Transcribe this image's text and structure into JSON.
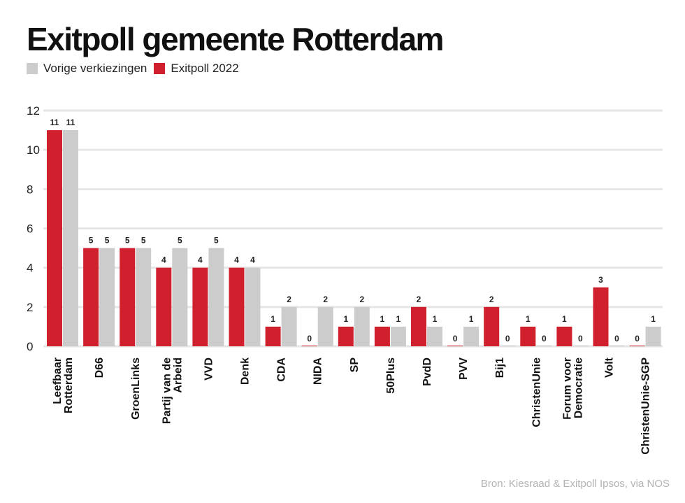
{
  "title": "Exitpoll gemeente Rotterdam",
  "source": "Bron: Kiesraad & Exitpoll Ipsos, via NOS",
  "colors": {
    "exitpoll": "#d0202e",
    "vorige": "#cccccc",
    "grid": "#e6e6e6"
  },
  "legend": [
    {
      "label": "Vorige verkiezingen",
      "color": "#cccccc"
    },
    {
      "label": "Exitpoll 2022",
      "color": "#d0202e"
    }
  ],
  "chart_data": {
    "type": "bar",
    "title": "Exitpoll gemeente Rotterdam",
    "xlabel": "",
    "ylabel": "",
    "ylim": [
      0,
      12
    ],
    "yticks": [
      0,
      2,
      4,
      6,
      8,
      10,
      12
    ],
    "grid": true,
    "legend_position": "top-left",
    "categories": [
      [
        "Leefbaar",
        "Rotterdam"
      ],
      [
        "D66"
      ],
      [
        "GroenLinks"
      ],
      [
        "Partij van de",
        "Arbeid"
      ],
      [
        "VVD"
      ],
      [
        "Denk"
      ],
      [
        "CDA"
      ],
      [
        "NIDA"
      ],
      [
        "SP"
      ],
      [
        "50Plus"
      ],
      [
        "PvdD"
      ],
      [
        "PVV"
      ],
      [
        "Bij1"
      ],
      [
        "ChristenUnie"
      ],
      [
        "Forum voor",
        "Democratie"
      ],
      [
        "Volt"
      ],
      [
        "ChristenUnie-SGP"
      ]
    ],
    "series": [
      {
        "name": "Exitpoll 2022",
        "color": "#d0202e",
        "values": [
          11,
          5,
          5,
          4,
          4,
          4,
          1,
          0,
          1,
          1,
          2,
          0,
          2,
          1,
          1,
          3,
          0
        ]
      },
      {
        "name": "Vorige verkiezingen",
        "color": "#cccccc",
        "values": [
          11,
          5,
          5,
          5,
          5,
          4,
          2,
          2,
          2,
          1,
          1,
          1,
          0,
          0,
          0,
          0,
          1
        ]
      }
    ]
  }
}
